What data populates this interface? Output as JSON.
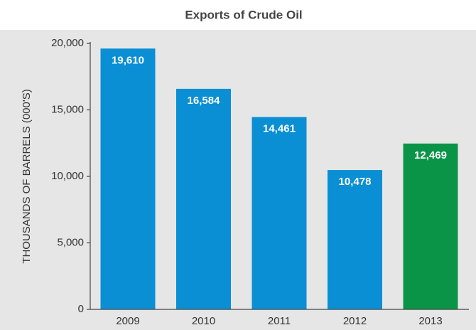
{
  "chart_data": {
    "type": "bar",
    "title": "Exports of Crude Oil",
    "y_label": "THOUSANDS OF BARRELS (000'S)",
    "categories": [
      "2009",
      "2010",
      "2011",
      "2012",
      "2013"
    ],
    "values": [
      19610,
      16584,
      14461,
      10478,
      12469
    ],
    "value_labels": [
      "19,610",
      "16,584",
      "14,461",
      "10,478",
      "12,469"
    ],
    "colors": [
      "#0a8fd5",
      "#0a8fd5",
      "#0a8fd5",
      "#0a8fd5",
      "#0a9448"
    ],
    "ylim": [
      0,
      20000
    ],
    "yticks": [
      0,
      {
        "value": 5000,
        "label": "5,000"
      },
      {
        "value": 10000,
        "label": "10,000"
      },
      {
        "value": 15000,
        "label": "15,000"
      },
      {
        "value": 20000,
        "label": "20,000"
      }
    ],
    "grid": false
  }
}
